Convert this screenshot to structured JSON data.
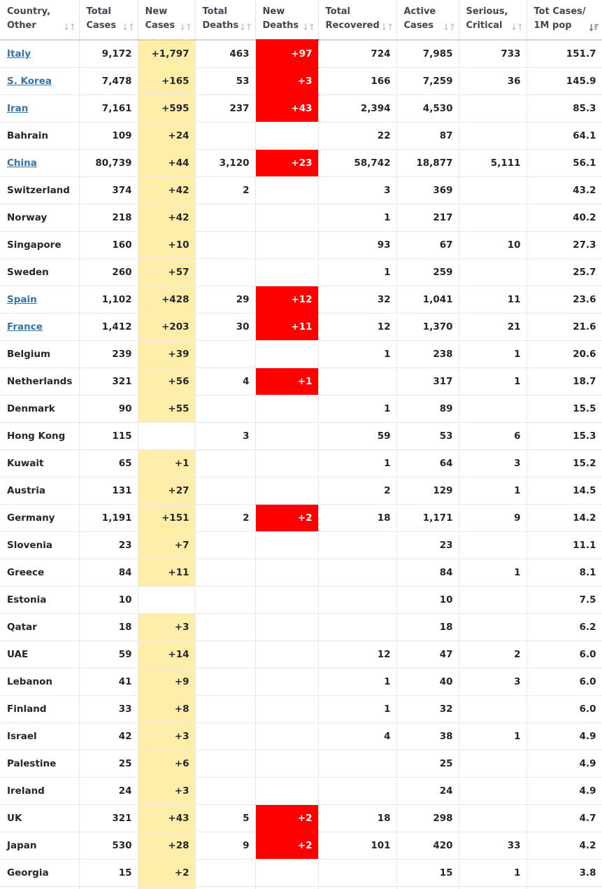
{
  "colors": {
    "new_cases_highlight_bg": "#FFEEAA",
    "new_deaths_highlight_bg": "#FF0000",
    "new_deaths_text": "#FFFFFF",
    "country_link": "#3473AC",
    "body_text": "#262626",
    "header_text": "#3D4852",
    "grid_border": "#E9E9E9"
  },
  "icons": {
    "inactive_sort_name": "sort-both-icon",
    "inactive_sort_glyph": "↓↑",
    "active_sort_name": "sort-descending-icon",
    "active_sort_color": "#78828A"
  },
  "table": {
    "columns": [
      {
        "id": "country",
        "label_line1": "Country,",
        "label_line2": "Other",
        "sort": "inactive"
      },
      {
        "id": "total-cases",
        "label_line1": "Total",
        "label_line2": "Cases",
        "sort": "inactive"
      },
      {
        "id": "new-cases",
        "label_line1": "New",
        "label_line2": "Cases",
        "sort": "inactive"
      },
      {
        "id": "total-deaths",
        "label_line1": "Total",
        "label_line2": "Deaths",
        "sort": "inactive"
      },
      {
        "id": "new-deaths",
        "label_line1": "New",
        "label_line2": "Deaths",
        "sort": "inactive"
      },
      {
        "id": "total-recovered",
        "label_line1": "Total",
        "label_line2": "Recovered",
        "sort": "inactive"
      },
      {
        "id": "active-cases",
        "label_line1": "Active",
        "label_line2": "Cases",
        "sort": "inactive"
      },
      {
        "id": "serious-critical",
        "label_line1": "Serious,",
        "label_line2": "Critical",
        "sort": "inactive"
      },
      {
        "id": "cases-per-1m",
        "label_line1": "Tot Cases/",
        "label_line2": "1M pop",
        "sort": "active-desc"
      }
    ],
    "rows": [
      {
        "country": "Italy",
        "is_link": true,
        "total_cases": "9,172",
        "new_cases": "+1,797",
        "total_deaths": "463",
        "new_deaths": "+97",
        "total_recovered": "724",
        "active_cases": "7,985",
        "serious_critical": "733",
        "tot_cases_1m": "151.7"
      },
      {
        "country": "S. Korea",
        "is_link": true,
        "total_cases": "7,478",
        "new_cases": "+165",
        "total_deaths": "53",
        "new_deaths": "+3",
        "total_recovered": "166",
        "active_cases": "7,259",
        "serious_critical": "36",
        "tot_cases_1m": "145.9"
      },
      {
        "country": "Iran",
        "is_link": true,
        "total_cases": "7,161",
        "new_cases": "+595",
        "total_deaths": "237",
        "new_deaths": "+43",
        "total_recovered": "2,394",
        "active_cases": "4,530",
        "serious_critical": "",
        "tot_cases_1m": "85.3"
      },
      {
        "country": "Bahrain",
        "is_link": false,
        "total_cases": "109",
        "new_cases": "+24",
        "total_deaths": "",
        "new_deaths": "",
        "total_recovered": "22",
        "active_cases": "87",
        "serious_critical": "",
        "tot_cases_1m": "64.1"
      },
      {
        "country": "China",
        "is_link": true,
        "total_cases": "80,739",
        "new_cases": "+44",
        "total_deaths": "3,120",
        "new_deaths": "+23",
        "total_recovered": "58,742",
        "active_cases": "18,877",
        "serious_critical": "5,111",
        "tot_cases_1m": "56.1"
      },
      {
        "country": "Switzerland",
        "is_link": false,
        "total_cases": "374",
        "new_cases": "+42",
        "total_deaths": "2",
        "new_deaths": "",
        "total_recovered": "3",
        "active_cases": "369",
        "serious_critical": "",
        "tot_cases_1m": "43.2"
      },
      {
        "country": "Norway",
        "is_link": false,
        "total_cases": "218",
        "new_cases": "+42",
        "total_deaths": "",
        "new_deaths": "",
        "total_recovered": "1",
        "active_cases": "217",
        "serious_critical": "",
        "tot_cases_1m": "40.2"
      },
      {
        "country": "Singapore",
        "is_link": false,
        "total_cases": "160",
        "new_cases": "+10",
        "total_deaths": "",
        "new_deaths": "",
        "total_recovered": "93",
        "active_cases": "67",
        "serious_critical": "10",
        "tot_cases_1m": "27.3"
      },
      {
        "country": "Sweden",
        "is_link": false,
        "total_cases": "260",
        "new_cases": "+57",
        "total_deaths": "",
        "new_deaths": "",
        "total_recovered": "1",
        "active_cases": "259",
        "serious_critical": "",
        "tot_cases_1m": "25.7"
      },
      {
        "country": "Spain",
        "is_link": true,
        "total_cases": "1,102",
        "new_cases": "+428",
        "total_deaths": "29",
        "new_deaths": "+12",
        "total_recovered": "32",
        "active_cases": "1,041",
        "serious_critical": "11",
        "tot_cases_1m": "23.6"
      },
      {
        "country": "France",
        "is_link": true,
        "total_cases": "1,412",
        "new_cases": "+203",
        "total_deaths": "30",
        "new_deaths": "+11",
        "total_recovered": "12",
        "active_cases": "1,370",
        "serious_critical": "21",
        "tot_cases_1m": "21.6"
      },
      {
        "country": "Belgium",
        "is_link": false,
        "total_cases": "239",
        "new_cases": "+39",
        "total_deaths": "",
        "new_deaths": "",
        "total_recovered": "1",
        "active_cases": "238",
        "serious_critical": "1",
        "tot_cases_1m": "20.6"
      },
      {
        "country": "Netherlands",
        "is_link": false,
        "total_cases": "321",
        "new_cases": "+56",
        "total_deaths": "4",
        "new_deaths": "+1",
        "total_recovered": "",
        "active_cases": "317",
        "serious_critical": "1",
        "tot_cases_1m": "18.7"
      },
      {
        "country": "Denmark",
        "is_link": false,
        "total_cases": "90",
        "new_cases": "+55",
        "total_deaths": "",
        "new_deaths": "",
        "total_recovered": "1",
        "active_cases": "89",
        "serious_critical": "",
        "tot_cases_1m": "15.5"
      },
      {
        "country": "Hong Kong",
        "is_link": false,
        "total_cases": "115",
        "new_cases": "",
        "total_deaths": "3",
        "new_deaths": "",
        "total_recovered": "59",
        "active_cases": "53",
        "serious_critical": "6",
        "tot_cases_1m": "15.3"
      },
      {
        "country": "Kuwait",
        "is_link": false,
        "total_cases": "65",
        "new_cases": "+1",
        "total_deaths": "",
        "new_deaths": "",
        "total_recovered": "1",
        "active_cases": "64",
        "serious_critical": "3",
        "tot_cases_1m": "15.2"
      },
      {
        "country": "Austria",
        "is_link": false,
        "total_cases": "131",
        "new_cases": "+27",
        "total_deaths": "",
        "new_deaths": "",
        "total_recovered": "2",
        "active_cases": "129",
        "serious_critical": "1",
        "tot_cases_1m": "14.5"
      },
      {
        "country": "Germany",
        "is_link": false,
        "total_cases": "1,191",
        "new_cases": "+151",
        "total_deaths": "2",
        "new_deaths": "+2",
        "total_recovered": "18",
        "active_cases": "1,171",
        "serious_critical": "9",
        "tot_cases_1m": "14.2"
      },
      {
        "country": "Slovenia",
        "is_link": false,
        "total_cases": "23",
        "new_cases": "+7",
        "total_deaths": "",
        "new_deaths": "",
        "total_recovered": "",
        "active_cases": "23",
        "serious_critical": "",
        "tot_cases_1m": "11.1"
      },
      {
        "country": "Greece",
        "is_link": false,
        "total_cases": "84",
        "new_cases": "+11",
        "total_deaths": "",
        "new_deaths": "",
        "total_recovered": "",
        "active_cases": "84",
        "serious_critical": "1",
        "tot_cases_1m": "8.1"
      },
      {
        "country": "Estonia",
        "is_link": false,
        "total_cases": "10",
        "new_cases": "",
        "total_deaths": "",
        "new_deaths": "",
        "total_recovered": "",
        "active_cases": "10",
        "serious_critical": "",
        "tot_cases_1m": "7.5"
      },
      {
        "country": "Qatar",
        "is_link": false,
        "total_cases": "18",
        "new_cases": "+3",
        "total_deaths": "",
        "new_deaths": "",
        "total_recovered": "",
        "active_cases": "18",
        "serious_critical": "",
        "tot_cases_1m": "6.2"
      },
      {
        "country": "UAE",
        "is_link": false,
        "total_cases": "59",
        "new_cases": "+14",
        "total_deaths": "",
        "new_deaths": "",
        "total_recovered": "12",
        "active_cases": "47",
        "serious_critical": "2",
        "tot_cases_1m": "6.0"
      },
      {
        "country": "Lebanon",
        "is_link": false,
        "total_cases": "41",
        "new_cases": "+9",
        "total_deaths": "",
        "new_deaths": "",
        "total_recovered": "1",
        "active_cases": "40",
        "serious_critical": "3",
        "tot_cases_1m": "6.0"
      },
      {
        "country": "Finland",
        "is_link": false,
        "total_cases": "33",
        "new_cases": "+8",
        "total_deaths": "",
        "new_deaths": "",
        "total_recovered": "1",
        "active_cases": "32",
        "serious_critical": "",
        "tot_cases_1m": "6.0"
      },
      {
        "country": "Israel",
        "is_link": false,
        "total_cases": "42",
        "new_cases": "+3",
        "total_deaths": "",
        "new_deaths": "",
        "total_recovered": "4",
        "active_cases": "38",
        "serious_critical": "1",
        "tot_cases_1m": "4.9"
      },
      {
        "country": "Palestine",
        "is_link": false,
        "total_cases": "25",
        "new_cases": "+6",
        "total_deaths": "",
        "new_deaths": "",
        "total_recovered": "",
        "active_cases": "25",
        "serious_critical": "",
        "tot_cases_1m": "4.9"
      },
      {
        "country": "Ireland",
        "is_link": false,
        "total_cases": "24",
        "new_cases": "+3",
        "total_deaths": "",
        "new_deaths": "",
        "total_recovered": "",
        "active_cases": "24",
        "serious_critical": "",
        "tot_cases_1m": "4.9"
      },
      {
        "country": "UK",
        "is_link": false,
        "total_cases": "321",
        "new_cases": "+43",
        "total_deaths": "5",
        "new_deaths": "+2",
        "total_recovered": "18",
        "active_cases": "298",
        "serious_critical": "",
        "tot_cases_1m": "4.7"
      },
      {
        "country": "Japan",
        "is_link": false,
        "total_cases": "530",
        "new_cases": "+28",
        "total_deaths": "9",
        "new_deaths": "+2",
        "total_recovered": "101",
        "active_cases": "420",
        "serious_critical": "33",
        "tot_cases_1m": "4.2"
      },
      {
        "country": "Georgia",
        "is_link": false,
        "total_cases": "15",
        "new_cases": "+2",
        "total_deaths": "",
        "new_deaths": "",
        "total_recovered": "",
        "active_cases": "15",
        "serious_critical": "1",
        "tot_cases_1m": "3.8"
      }
    ],
    "partial_next_row_visible": true
  }
}
